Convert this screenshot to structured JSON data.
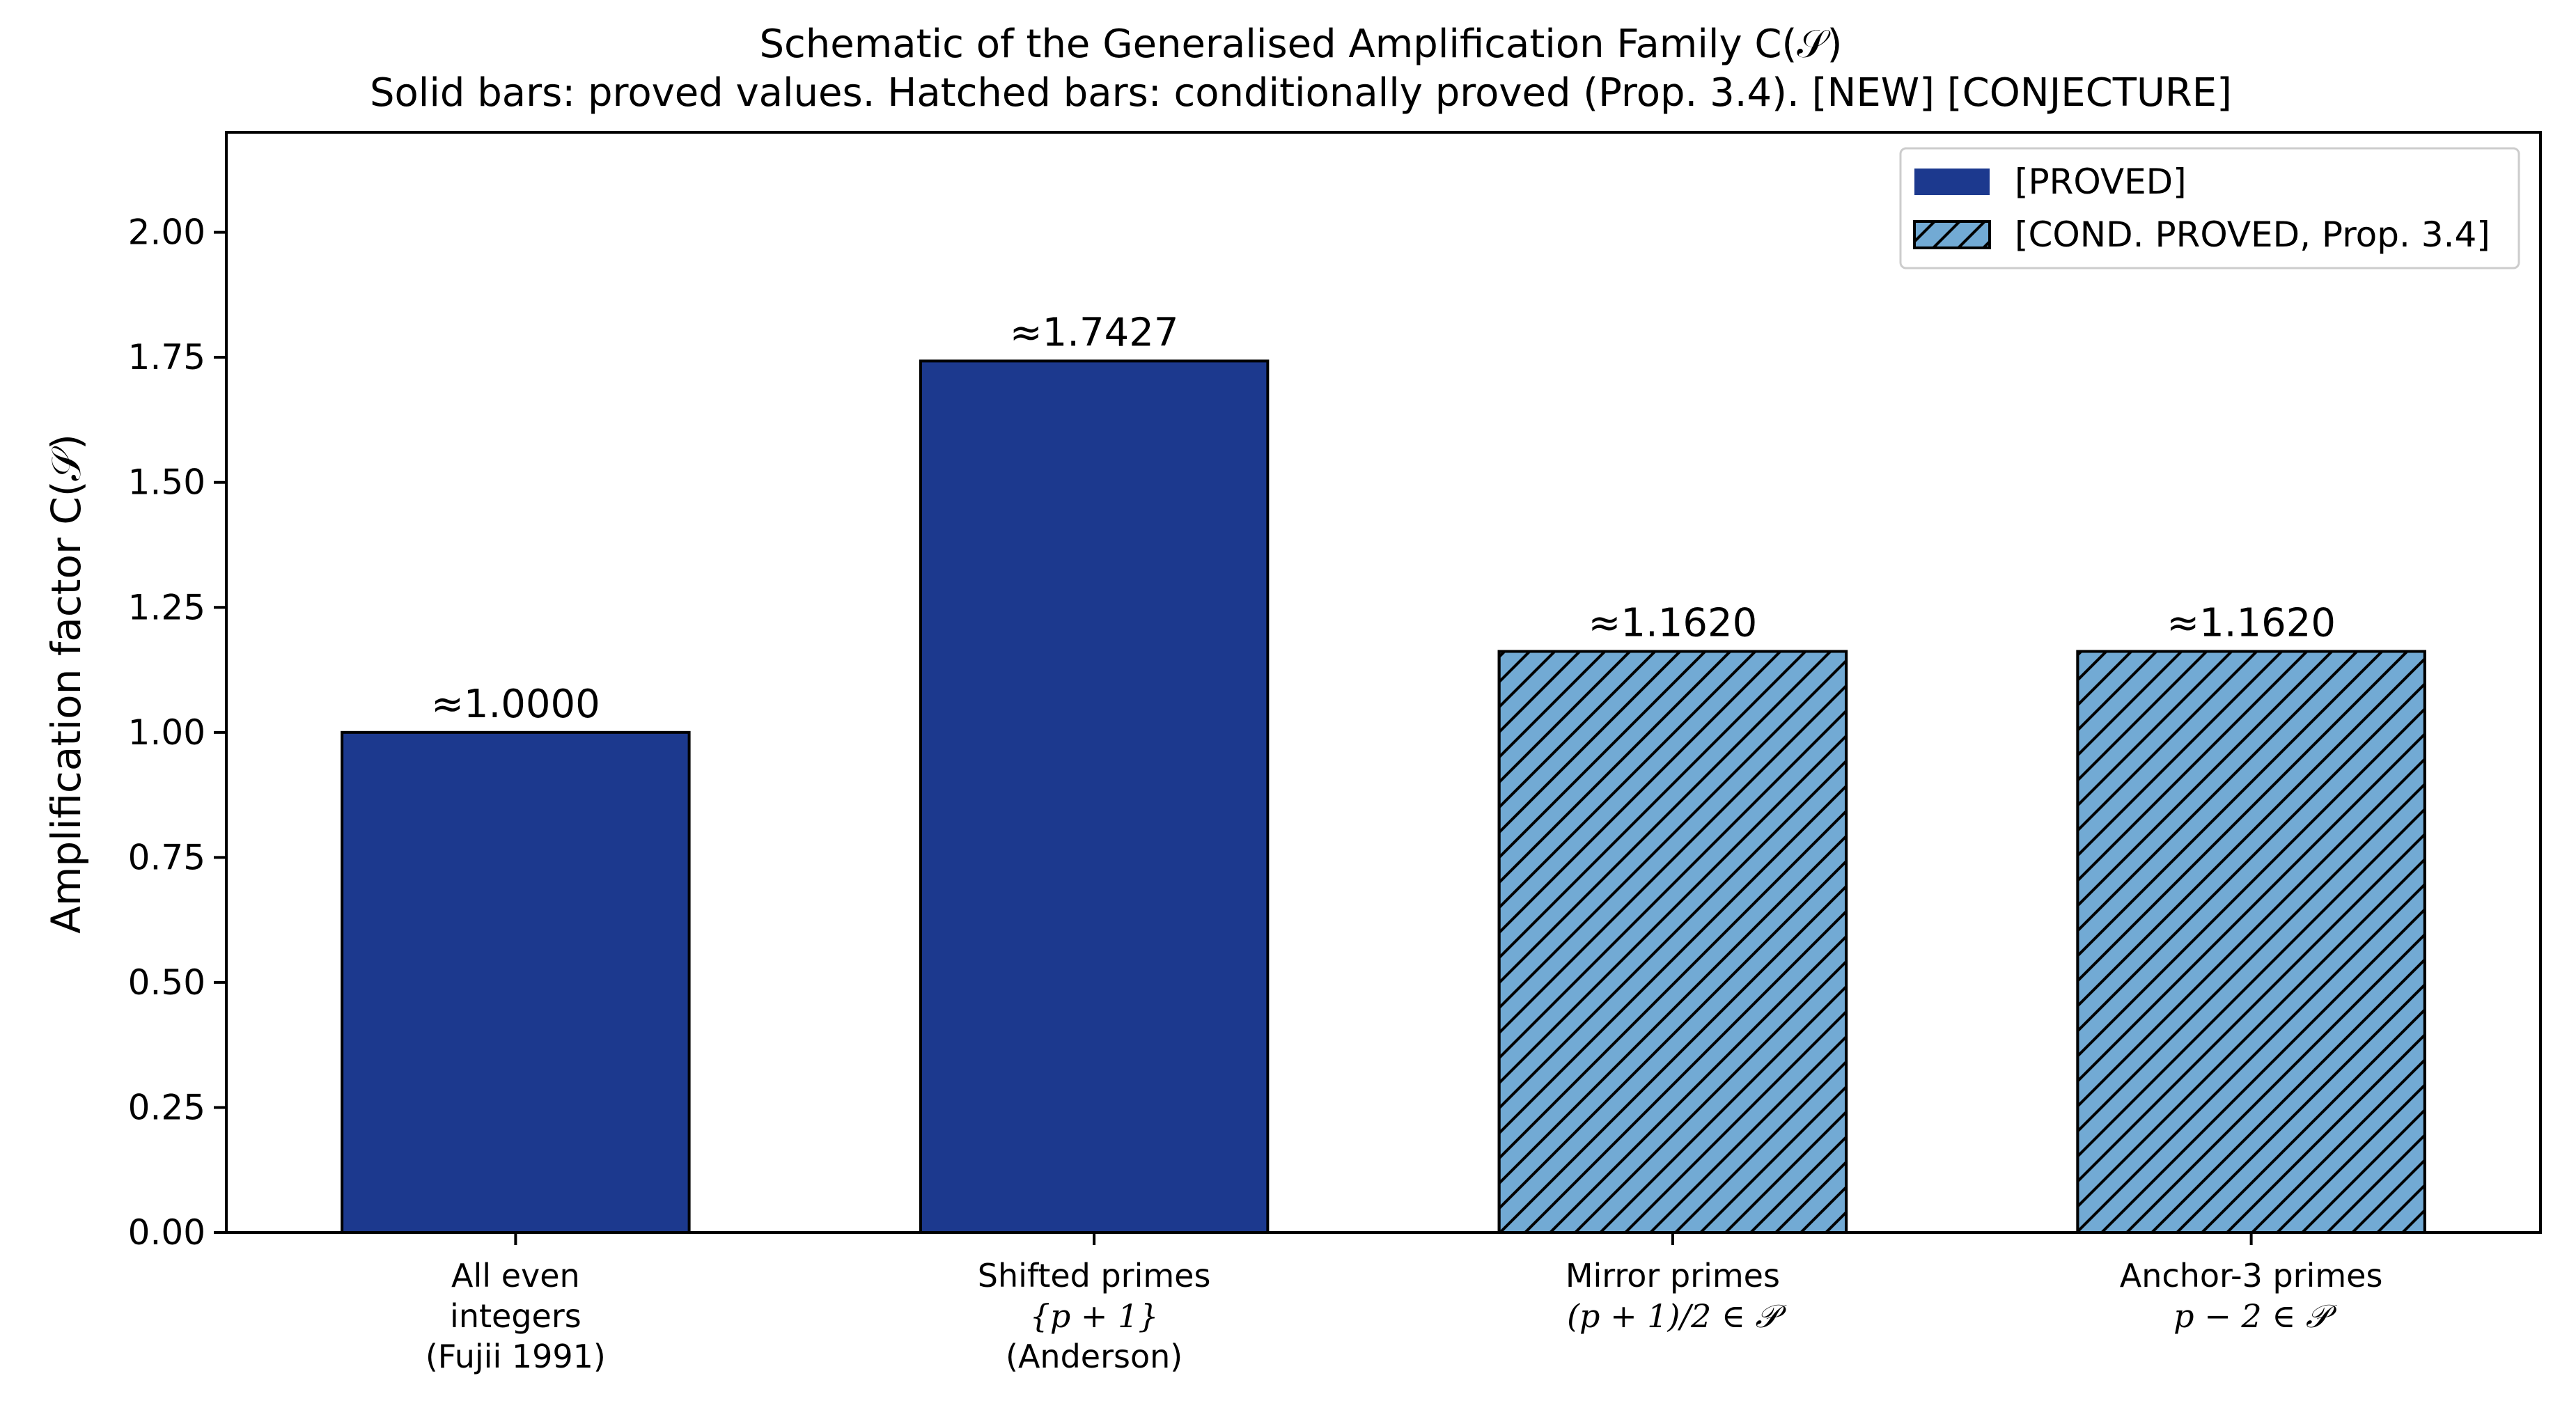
{
  "chart_data": {
    "type": "bar",
    "title": "Schematic of the Generalised Amplification Family C(𝒮)",
    "subtitle": "Solid bars: proved values. Hatched bars: conditionally proved (Prop. 3.4). [NEW] [CONJECTURE]",
    "ylabel": "Amplification factor C(𝒮)",
    "xlabel": "",
    "ylim": [
      0,
      2.2
    ],
    "yticks": [
      "0.00",
      "0.25",
      "0.50",
      "0.75",
      "1.00",
      "1.25",
      "1.50",
      "1.75",
      "2.00"
    ],
    "ytick_values": [
      0,
      0.25,
      0.5,
      0.75,
      1.0,
      1.25,
      1.5,
      1.75,
      2.0
    ],
    "grid": false,
    "legend_position": "top-right",
    "legend": [
      {
        "label": "[PROVED]",
        "style": "solid",
        "color": "#1c398e"
      },
      {
        "label": "[COND. PROVED, Prop. 3.4]",
        "style": "hatched",
        "color": "#72aad4"
      }
    ],
    "categories": [
      {
        "lines": [
          "All even",
          "integers",
          "(Fujii 1991)"
        ]
      },
      {
        "lines": [
          "Shifted primes",
          "{p + 1}",
          "(Anderson)"
        ]
      },
      {
        "lines": [
          "Mirror primes",
          "(p + 1)/2 ∈ 𝒫"
        ]
      },
      {
        "lines": [
          "Anchor-3 primes",
          "p − 2 ∈ 𝒫"
        ]
      }
    ],
    "values": [
      1.0,
      1.7427,
      1.162,
      1.162
    ],
    "data_labels": [
      "≈1.0000",
      "≈1.7427",
      "≈1.1620",
      "≈1.1620"
    ],
    "bar_styles": [
      "solid",
      "solid",
      "hatched",
      "hatched"
    ]
  },
  "colors": {
    "proved": "#1c398e",
    "cond_proved": "#72aad4",
    "edge": "#000000"
  }
}
